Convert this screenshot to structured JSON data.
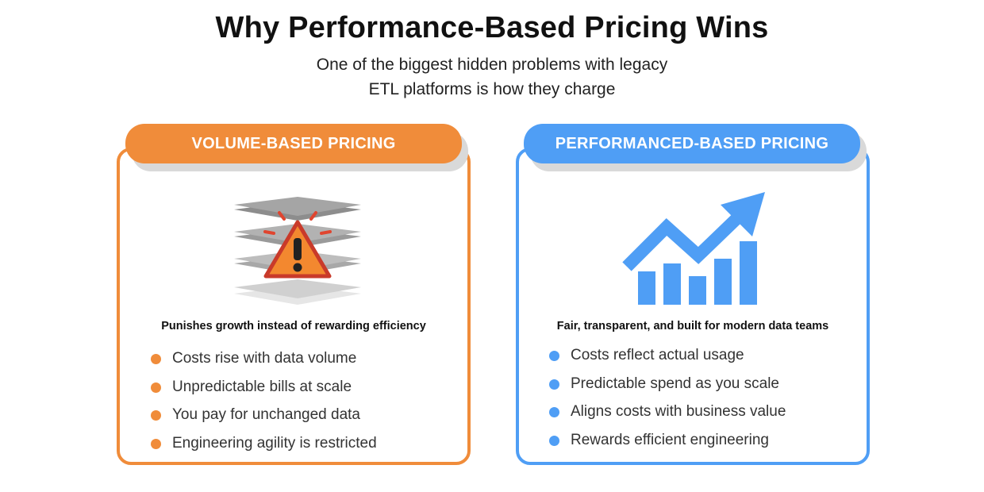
{
  "header": {
    "title": "Why Performance-Based Pricing Wins",
    "subtitle_line1": "One of the biggest hidden problems with legacy",
    "subtitle_line2": "ETL platforms is how they charge"
  },
  "left_card": {
    "label": "VOLUME-BASED PRICING",
    "icon": "stacked-layers-warning-icon",
    "summary": "Punishes growth instead of rewarding efficiency",
    "bullets": [
      "Costs rise with data volume",
      "Unpredictable bills at scale",
      "You pay for unchanged data",
      "Engineering agility is restricted"
    ],
    "accent": "#f08c3a"
  },
  "right_card": {
    "label": "PERFORMANCED-BASED PRICING",
    "icon": "growth-chart-arrow-icon",
    "summary": "Fair, transparent, and built for modern data teams",
    "bullets": [
      "Costs reflect actual usage",
      "Predictable spend as you scale",
      "Aligns costs with business value",
      "Rewards efficient engineering"
    ],
    "accent": "#4f9ef5"
  }
}
